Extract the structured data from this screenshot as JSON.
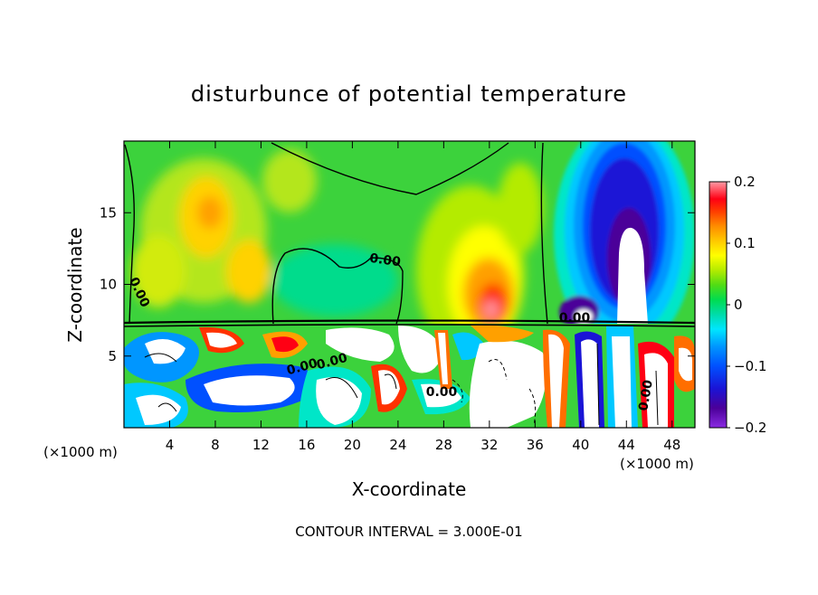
{
  "chart_data": {
    "type": "heatmap",
    "title": "disturbunce of potential temperature",
    "xlabel": "X-coordinate",
    "ylabel": "Z-coordinate",
    "x_unit_left": "(×1000 m)",
    "x_unit_right": "(×1000 m)",
    "xlim": [
      0,
      50
    ],
    "ylim": [
      0,
      20
    ],
    "x_ticks": [
      4,
      8,
      12,
      16,
      20,
      24,
      28,
      32,
      36,
      40,
      44,
      48
    ],
    "y_ticks": [
      5,
      10,
      15
    ],
    "colorbar": {
      "range": [
        -0.2,
        0.2
      ],
      "tick_values": [
        0.2,
        0.1,
        0,
        -0.1,
        -0.2
      ],
      "tick_labels": [
        "0.2",
        "0.1",
        "0",
        "−0.1",
        "−0.2"
      ],
      "colors": [
        "#8a2be2",
        "#4b0099",
        "#1a14d6",
        "#0050ff",
        "#0096ff",
        "#00d2ff",
        "#00e6c8",
        "#00dc78",
        "#28d228",
        "#8ce61e",
        "#d2f000",
        "#ffff00",
        "#ffd200",
        "#ffa000",
        "#ff6e00",
        "#ff3200",
        "#ff0014",
        "#ff96a0"
      ]
    },
    "contour_labels": [
      "0.00",
      "0.00",
      "0.00",
      "0.00",
      "0.00",
      "0.00",
      "0.00"
    ],
    "footer": "CONTOUR INTERVAL = 3.000E-01",
    "color_dark": "#000000"
  }
}
